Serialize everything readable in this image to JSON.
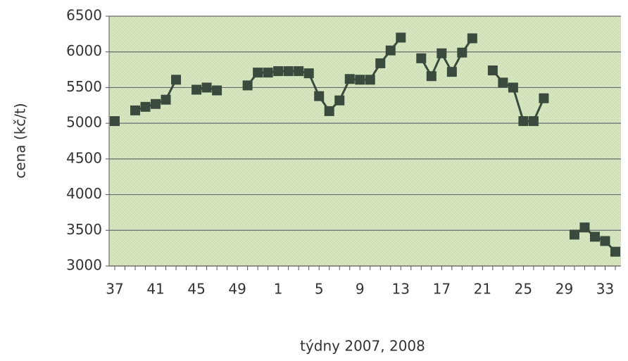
{
  "chart_data": {
    "type": "line",
    "xlabel": "týdny 2007, 2008",
    "ylabel": "cena (kč/t)",
    "categories": [
      "37",
      null,
      null,
      null,
      "41",
      null,
      null,
      null,
      "45",
      null,
      null,
      null,
      "49",
      null,
      null,
      null,
      "1",
      null,
      null,
      null,
      "5",
      null,
      null,
      null,
      "9",
      null,
      null,
      null,
      "13",
      null,
      null,
      null,
      "17",
      null,
      null,
      null,
      "21",
      null,
      null,
      null,
      "25",
      null,
      null,
      null,
      "29",
      null,
      null,
      null,
      "33",
      null
    ],
    "values": [
      5030,
      null,
      5180,
      5230,
      5270,
      5330,
      5610,
      null,
      5470,
      5500,
      5460,
      null,
      null,
      5530,
      5710,
      5710,
      5730,
      5730,
      5730,
      5700,
      5380,
      5170,
      5320,
      5620,
      5610,
      5610,
      5840,
      6020,
      6200,
      null,
      5910,
      5660,
      5980,
      5720,
      5990,
      6190,
      null,
      5740,
      5570,
      5500,
      5030,
      5030,
      5350,
      null,
      null,
      3440,
      3540,
      3410,
      3350,
      3200
    ],
    "color": "#3a4a3c",
    "ylim": [
      3000,
      6500
    ],
    "yticks": [
      3000,
      3500,
      4000,
      4500,
      5000,
      5500,
      6000,
      6500
    ],
    "grid": true
  }
}
